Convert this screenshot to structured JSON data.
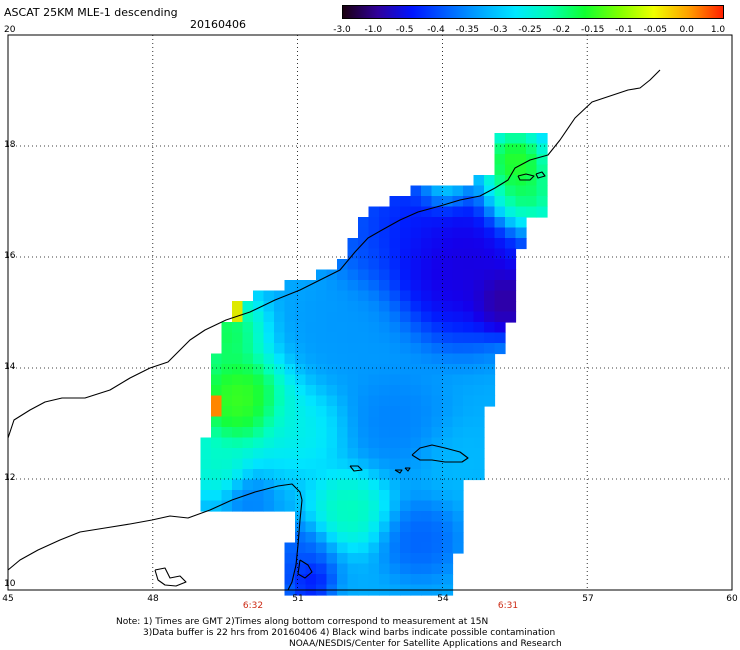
{
  "header": {
    "title": "ASCAT 25KM MLE-1 descending",
    "date": "20160406"
  },
  "colorbar": {
    "labels": [
      "-3.0",
      "-1.0",
      "-0.5",
      "-0.4",
      "-0.35",
      "-0.3",
      "-0.25",
      "-0.2",
      "-0.15",
      "-0.1",
      "-0.05",
      "0.0",
      "1.0"
    ],
    "colors": [
      "#1a0010",
      "#30009a",
      "#0014ff",
      "#0060ff",
      "#00a8ff",
      "#00e8ff",
      "#00ffb0",
      "#10ff30",
      "#80ff00",
      "#f0ff00",
      "#ffa000",
      "#ff2000"
    ]
  },
  "axes": {
    "lat_labels": [
      "20",
      "18",
      "16",
      "14",
      "12",
      "10"
    ],
    "lon_labels": [
      "45",
      "48",
      "51",
      "54",
      "57",
      "60"
    ]
  },
  "time_labels": [
    "6:32",
    "6:31"
  ],
  "footer": {
    "line1": "Note: 1) Times are GMT 2)Times along bottom correspond to measurement at 15N",
    "line2": "3)Data buffer is 22 hrs from 20160406 4) Black wind barbs indicate possible contamination",
    "line3": "NOAA/NESDIS/Center for Satellite Applications and Research"
  }
}
